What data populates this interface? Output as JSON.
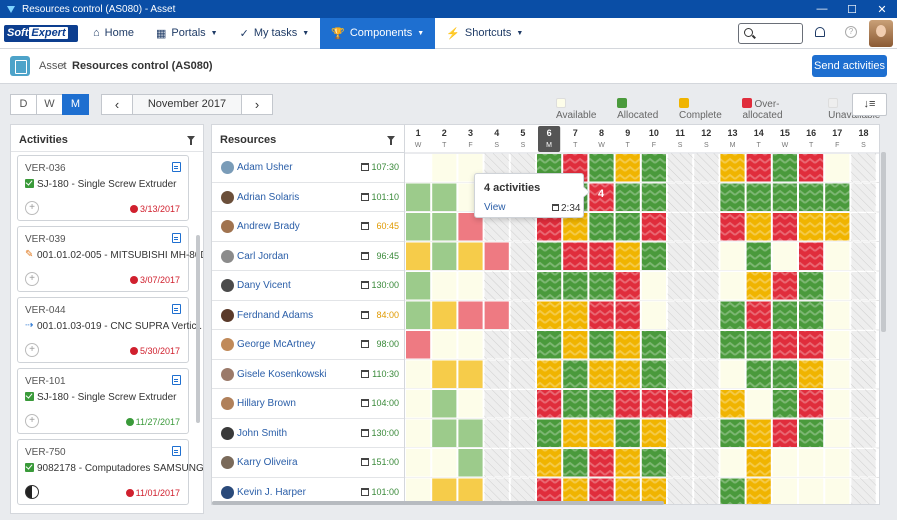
{
  "window": {
    "title": "Resources control (AS080) - Asset",
    "minimize": "—",
    "maximize": "☐",
    "close": "✕"
  },
  "nav": {
    "logo_a": "Soft",
    "logo_b": "Expert",
    "items": [
      {
        "label": "Home",
        "icon": "⌂"
      },
      {
        "label": "Portals",
        "icon": "▦"
      },
      {
        "label": "My tasks",
        "icon": "✓"
      },
      {
        "label": "Components",
        "icon": "🏆"
      },
      {
        "label": "Shortcuts",
        "icon": "⚡"
      }
    ],
    "help": "?"
  },
  "breadcrumb": {
    "parent": "Asset",
    "sep": "›",
    "current": "Resources control (AS080)"
  },
  "send_button": "Send activities",
  "view": {
    "options": [
      "D",
      "W",
      "M"
    ],
    "selected": "M"
  },
  "month": {
    "label": "November 2017",
    "prev": "‹",
    "next": "›"
  },
  "legend": [
    {
      "label": "Available",
      "color": "#fdfde9"
    },
    {
      "label": "Allocated",
      "color": "#4a9a3c"
    },
    {
      "label": "Complete",
      "color": "#f0b400"
    },
    {
      "label": "Over-allocated",
      "color": "#e02d3c"
    },
    {
      "label": "Unavailable",
      "color": "#eeeeee"
    }
  ],
  "sort_label": "↓≡",
  "activities": {
    "title": "Activities",
    "cards": [
      {
        "id": "VER-036",
        "kind": "check",
        "title": "SJ-180 - Single Screw Extruder",
        "date": "3/13/2017",
        "status": "late",
        "moon": false
      },
      {
        "id": "VER-039",
        "kind": "wrench",
        "title": "001.01.02-005 - MITSUBISHI MH-80D",
        "date": "3/07/2017",
        "status": "late",
        "moon": false
      },
      {
        "id": "VER-044",
        "kind": "link",
        "title": "001.01.03-019 - CNC SUPRA Vertic...",
        "date": "5/30/2017",
        "status": "late",
        "moon": false
      },
      {
        "id": "VER-101",
        "kind": "check",
        "title": "SJ-180 - Single Screw Extruder",
        "date": "11/27/2017",
        "status": "ok",
        "moon": false
      },
      {
        "id": "VER-750",
        "kind": "check",
        "title": "9082178 - Computadores SAMSUNG",
        "date": "11/01/2017",
        "status": "late",
        "moon": true
      }
    ]
  },
  "resources": {
    "title": "Resources",
    "rows": [
      {
        "name": "Adam Usher",
        "hours": "107:30",
        "hcolor": "#3a8a3a",
        "avatar": "#7a9cb8"
      },
      {
        "name": "Adrian Solaris",
        "hours": "101:10",
        "hcolor": "#3a8a3a",
        "avatar": "#6b4f3a"
      },
      {
        "name": "Andrew Brady",
        "hours": "60:45",
        "hcolor": "#e09a00",
        "avatar": "#a0734f"
      },
      {
        "name": "Carl Jordan",
        "hours": "96:45",
        "hcolor": "#3a8a3a",
        "avatar": "#8b8b8b"
      },
      {
        "name": "Dany Vicent",
        "hours": "130:00",
        "hcolor": "#3a8a3a",
        "avatar": "#4b4b4b"
      },
      {
        "name": "Ferdnand Adams",
        "hours": "84:00",
        "hcolor": "#e09a00",
        "avatar": "#5a3a2a"
      },
      {
        "name": "George McArtney",
        "hours": "98:00",
        "hcolor": "#3a8a3a",
        "avatar": "#c08a5a"
      },
      {
        "name": "Gisele Kosenkowski",
        "hours": "110:30",
        "hcolor": "#3a8a3a",
        "avatar": "#9b7a6a"
      },
      {
        "name": "Hillary Brown",
        "hours": "104:00",
        "hcolor": "#3a8a3a",
        "avatar": "#b0805a"
      },
      {
        "name": "John Smith",
        "hours": "130:00",
        "hcolor": "#3a8a3a",
        "avatar": "#3a3a3a"
      },
      {
        "name": "Karry Oliveira",
        "hours": "151:00",
        "hcolor": "#3a8a3a",
        "avatar": "#7a6a5a"
      },
      {
        "name": "Kevin J. Harper",
        "hours": "101:00",
        "hcolor": "#3a8a3a",
        "avatar": "#2a4a7a"
      }
    ]
  },
  "calendar": {
    "days": [
      "1",
      "2",
      "3",
      "4",
      "5",
      "6",
      "7",
      "8",
      "9",
      "10",
      "11",
      "12",
      "13",
      "14",
      "15",
      "16",
      "17",
      "18"
    ],
    "weekdays": [
      "W",
      "T",
      "F",
      "S",
      "S",
      "M",
      "T",
      "W",
      "T",
      "F",
      "S",
      "S",
      "M",
      "T",
      "W",
      "T",
      "F",
      "S"
    ],
    "today": "6",
    "status_codes": "A = available, L = allocated (light), G = allocated, Y = complete, y = complete (light), R = over-allocated, r = over-allocated (light), U = unavailable",
    "grid": [
      "lAAUUGRGYGUUYRGRAU",
      "LLAUUGGRGGUUGGGGGU",
      "LLrUURYGGRUURYRYYU",
      "yLyrUGRRYGUUAGARAU",
      "LAAUUGGGRAUUAYRGAU",
      "LyrrUYYRRAUUGRGGAU",
      "rAAUUGYGYGUUGGRRAU",
      "AyyUUYGYYGUUAGGYAU",
      "ALAUURGGRRRUYAGRAU",
      "ALLUUGYYGYUUGYRGAU",
      "AALUUYGRYGUUAYAAAU",
      "AyyUURYRYYUUGYAAAU"
    ]
  },
  "tooltip": {
    "title": "4 activities",
    "link": "View",
    "hours": "2:34",
    "count": "4"
  }
}
